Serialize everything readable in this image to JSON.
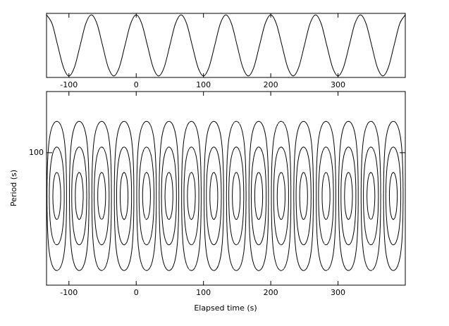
{
  "chart_data": [
    {
      "type": "line",
      "x": [
        -133.3,
        -125,
        -116.7,
        -108.3,
        -100,
        -91.7,
        -83.3,
        -75,
        -66.7,
        -58.3,
        -50,
        -41.7,
        -33.3,
        -25,
        -16.7,
        -8.3,
        0,
        8.3,
        16.7,
        25,
        33.3,
        41.7,
        50,
        58.3,
        66.7,
        75,
        83.3,
        91.7,
        100,
        108.3,
        116.7,
        125,
        133.3,
        141.7,
        150,
        158.3,
        166.7,
        175,
        183.3,
        191.7,
        200,
        208.3,
        216.7,
        225,
        233.3,
        241.7,
        250,
        258.3,
        266.7,
        275,
        283.3,
        291.7,
        300,
        308.3,
        316.7,
        325,
        333.3,
        341.7,
        350,
        358.3,
        366.7,
        375,
        383.3,
        391.7,
        400
      ],
      "values": [
        1,
        0.71,
        0,
        -0.71,
        -1,
        -0.71,
        0,
        0.71,
        1,
        0.71,
        0,
        -0.71,
        -1,
        -0.71,
        0,
        0.71,
        1,
        0.71,
        0,
        -0.71,
        -1,
        -0.71,
        0,
        0.71,
        1,
        0.71,
        0,
        -0.71,
        -1,
        -0.71,
        0,
        0.71,
        1,
        0.71,
        0,
        -0.71,
        -1,
        -0.71,
        0,
        0.71,
        1,
        0.71,
        0,
        -0.71,
        -1,
        -0.71,
        0,
        0.71,
        1,
        0.71,
        0,
        -0.71,
        -1,
        -0.71,
        0,
        0.71,
        1,
        0.71,
        0,
        -0.71,
        -1,
        -0.71,
        0,
        0.71,
        1
      ],
      "color": "#000000",
      "xlim": [
        -133.3,
        400
      ],
      "xticks": [
        -100,
        0,
        100,
        200,
        300
      ],
      "ylim": [
        -1.05,
        1.05
      ]
    },
    {
      "type": "contour",
      "x_label": "Elapsed time (s)",
      "y_label": "Period (s)",
      "xlim": [
        -133.3,
        400
      ],
      "xticks": [
        -100,
        0,
        100,
        200,
        300
      ],
      "ylim": [
        28,
        180
      ],
      "yticks": [
        100
      ],
      "log_y": true,
      "field": {
        "period": 66.7,
        "phase": -18,
        "center_period": 66,
        "width": 0.4
      },
      "levels": [
        -0.85,
        -0.5,
        -0.2,
        0.2,
        0.5,
        0.85
      ],
      "color": "#000000"
    }
  ]
}
